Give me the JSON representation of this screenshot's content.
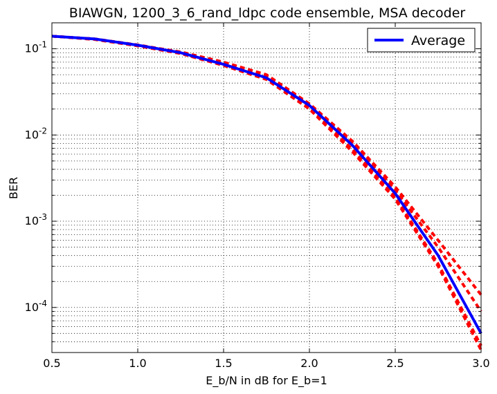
{
  "chart_data": {
    "type": "line",
    "title": "BIAWGN, 1200_3_6_rand_ldpc code ensemble, MSA decoder",
    "xlabel": "E_b/N in dB for E_b=1",
    "ylabel": "BER",
    "xlim": [
      0.5,
      3.0
    ],
    "ylim": [
      3e-05,
      0.2
    ],
    "yscale": "log",
    "grid": true,
    "legend_position": "top-right",
    "x_ticks": [
      0.5,
      1.0,
      1.5,
      2.0,
      2.5,
      3.0
    ],
    "x_tick_labels": [
      "0.5",
      "1.0",
      "1.5",
      "2.0",
      "2.5",
      "3.0"
    ],
    "y_ticks": [
      0.1,
      0.01,
      0.001,
      0.0001
    ],
    "y_tick_labels": [
      {
        "base": "10",
        "exp": "-1"
      },
      {
        "base": "10",
        "exp": "-2"
      },
      {
        "base": "10",
        "exp": "-3"
      },
      {
        "base": "10",
        "exp": "-4"
      }
    ],
    "x": [
      0.5,
      0.75,
      1.0,
      1.25,
      1.5,
      1.75,
      2.0,
      2.25,
      2.5,
      2.75,
      3.0
    ],
    "series": [
      {
        "name": "Average",
        "color": "#0000ff",
        "style": "solid",
        "values": [
          0.14,
          0.13,
          0.11,
          0.09,
          0.066,
          0.046,
          0.022,
          0.0076,
          0.0021,
          0.0004,
          5e-05
        ]
      },
      {
        "color": "#ff0000",
        "style": "dashed",
        "values": [
          0.14,
          0.13,
          0.11,
          0.092,
          0.07,
          0.05,
          0.023,
          0.0085,
          0.0025,
          0.0006,
          0.00014
        ]
      },
      {
        "color": "#ff0000",
        "style": "dashed",
        "values": [
          0.14,
          0.129,
          0.109,
          0.089,
          0.065,
          0.045,
          0.021,
          0.0068,
          0.0019,
          0.00032,
          3.6e-05
        ]
      },
      {
        "color": "#ff0000",
        "style": "dashed",
        "values": [
          0.14,
          0.128,
          0.108,
          0.088,
          0.064,
          0.044,
          0.02,
          0.0064,
          0.0018,
          0.0003,
          3.2e-05
        ]
      },
      {
        "color": "#ff0000",
        "style": "dashed",
        "values": [
          0.14,
          0.13,
          0.111,
          0.091,
          0.068,
          0.048,
          0.0225,
          0.008,
          0.0023,
          0.0005,
          9e-05
        ]
      }
    ]
  }
}
